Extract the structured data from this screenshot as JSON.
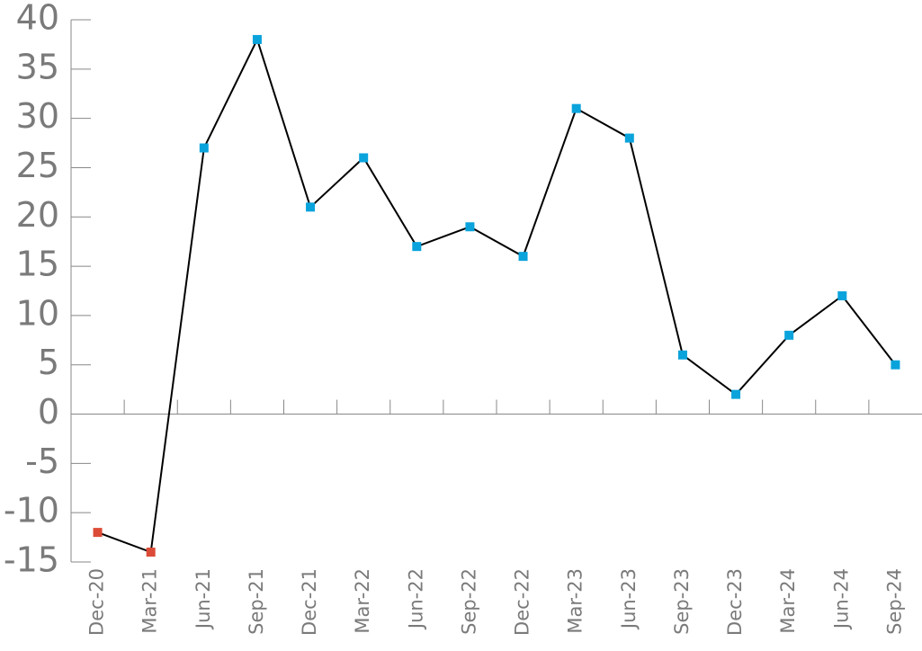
{
  "chart_data": {
    "type": "line",
    "categories": [
      "Dec-20",
      "Mar-21",
      "Jun-21",
      "Sep-21",
      "Dec-21",
      "Mar-22",
      "Jun-22",
      "Sep-22",
      "Dec-22",
      "Mar-23",
      "Jun-23",
      "Sep-23",
      "Dec-23",
      "Mar-24",
      "Jun-24",
      "Sep-24"
    ],
    "values": [
      -12,
      -14,
      27,
      38,
      21,
      26,
      17,
      19,
      16,
      31,
      28,
      6,
      2,
      8,
      12,
      5
    ],
    "line_color": "#000000",
    "positive_color": "#0aa3dc",
    "negative_color": "#dc4b36",
    "ylim": [
      -15,
      40
    ],
    "yticks": [
      -15,
      -10,
      -5,
      0,
      5,
      10,
      15,
      20,
      25,
      30,
      35,
      40
    ],
    "grid": false
  }
}
